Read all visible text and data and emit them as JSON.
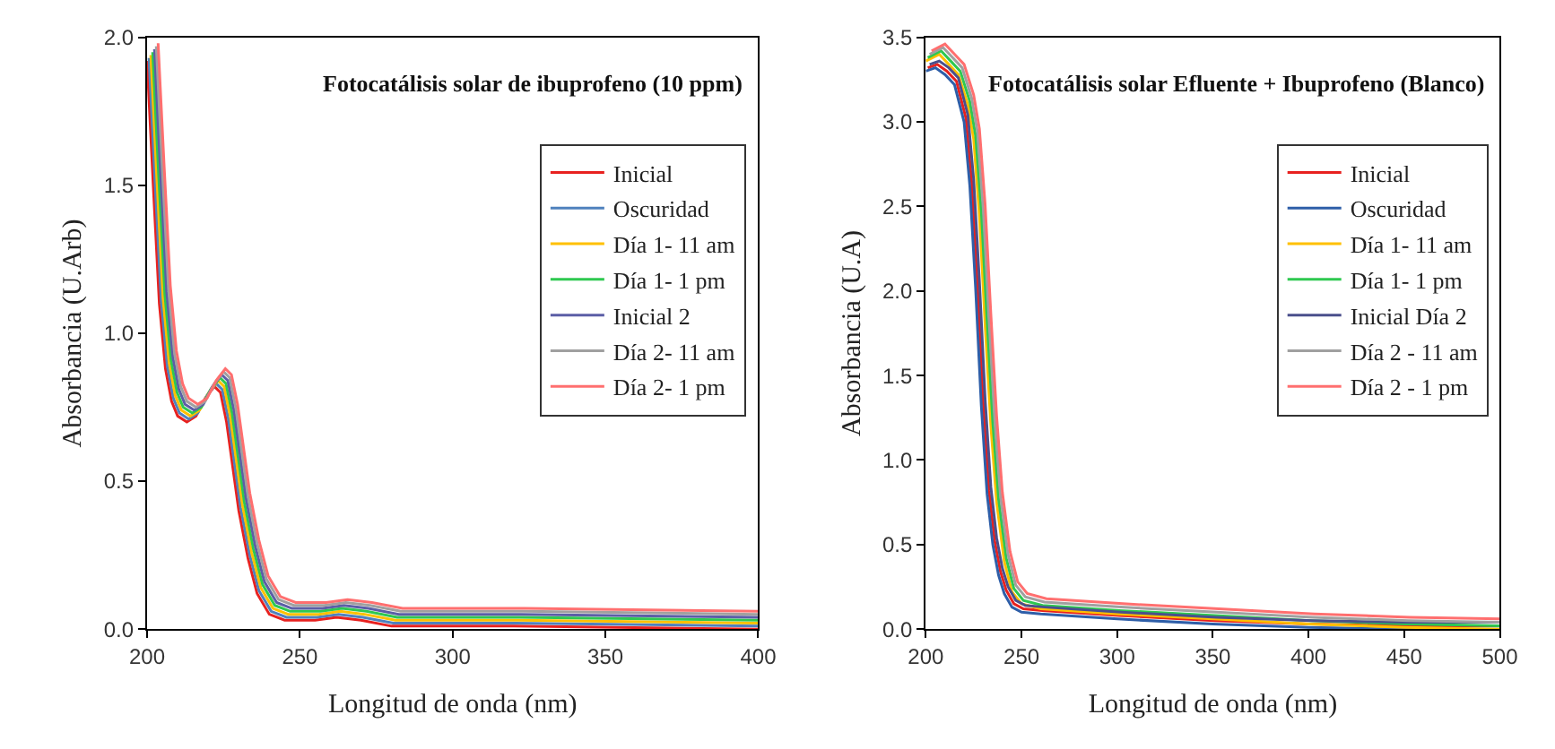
{
  "chart_data": [
    {
      "type": "line",
      "title": "Fotocatálisis solar de ibuprofeno (10 ppm)",
      "xlabel": "Longitud de onda (nm)",
      "ylabel": "Absorbancia (U.Arb)",
      "xlim": [
        200,
        400
      ],
      "xticks": [
        200,
        250,
        300,
        350,
        400
      ],
      "ylim": [
        0,
        2.0
      ],
      "yticks": [
        {
          "value": 0,
          "label": "0.0"
        },
        {
          "value": 0.5,
          "label": "0.5"
        },
        {
          "value": 1,
          "label": "1.0"
        },
        {
          "value": 1.5,
          "label": "1.5"
        },
        {
          "value": 2,
          "label": "2.0"
        }
      ],
      "grid": false,
      "legend": "top right",
      "marker": "none",
      "line_style": "solid",
      "series": [
        {
          "name": "Inicial",
          "color": "#e8211f",
          "x": [
            200,
            202,
            204,
            206,
            208,
            210,
            213,
            216,
            219,
            222,
            224,
            226,
            228,
            230,
            233,
            236,
            240,
            245,
            255,
            262,
            270,
            280,
            320,
            400
          ],
          "values": [
            1.92,
            1.5,
            1.1,
            0.88,
            0.77,
            0.72,
            0.7,
            0.72,
            0.78,
            0.82,
            0.8,
            0.7,
            0.55,
            0.4,
            0.24,
            0.12,
            0.05,
            0.03,
            0.03,
            0.04,
            0.03,
            0.01,
            0.01,
            0.0
          ]
        },
        {
          "name": "Oscuridad",
          "color": "#4f81bd",
          "x": [
            200.6,
            202.6,
            204.6,
            206.6,
            208.6,
            210.6,
            213.6,
            216.6,
            219.6,
            222.6,
            224.6,
            226.6,
            228.6,
            230.6,
            233.6,
            236.6,
            240.6,
            245.6,
            255.6,
            262.6,
            270.6,
            280.6,
            320.6,
            400
          ],
          "values": [
            1.93,
            1.51,
            1.11,
            0.89,
            0.78,
            0.73,
            0.71,
            0.73,
            0.79,
            0.83,
            0.81,
            0.71,
            0.56,
            0.41,
            0.25,
            0.13,
            0.06,
            0.04,
            0.04,
            0.05,
            0.04,
            0.02,
            0.02,
            0.01
          ]
        },
        {
          "name": "Día 1- 11 am",
          "color": "#ffc000",
          "x": [
            201.2,
            203.2,
            205.2,
            207.2,
            209.2,
            211.2,
            214.2,
            217.2,
            220.2,
            223.2,
            225.2,
            227.2,
            229.2,
            231.2,
            234.2,
            237.2,
            241.2,
            246.2,
            256.2,
            263.2,
            271.2,
            281.2,
            321.2,
            400
          ],
          "values": [
            1.94,
            1.52,
            1.12,
            0.9,
            0.79,
            0.74,
            0.72,
            0.74,
            0.8,
            0.84,
            0.82,
            0.72,
            0.57,
            0.42,
            0.26,
            0.14,
            0.07,
            0.05,
            0.05,
            0.06,
            0.05,
            0.03,
            0.03,
            0.02
          ]
        },
        {
          "name": "Día 1- 1 pm",
          "color": "#2ec850",
          "x": [
            201.8,
            203.8,
            205.8,
            207.8,
            209.8,
            211.8,
            214.8,
            217.8,
            220.8,
            223.8,
            225.8,
            227.8,
            229.8,
            231.8,
            234.8,
            237.8,
            241.8,
            246.8,
            256.8,
            263.8,
            271.8,
            281.8,
            321.8,
            400
          ],
          "values": [
            1.95,
            1.53,
            1.13,
            0.91,
            0.8,
            0.75,
            0.73,
            0.75,
            0.81,
            0.85,
            0.83,
            0.73,
            0.58,
            0.43,
            0.27,
            0.15,
            0.08,
            0.06,
            0.06,
            0.07,
            0.06,
            0.04,
            0.04,
            0.03
          ]
        },
        {
          "name": "Inicial 2",
          "color": "#5b5ea6",
          "x": [
            202.4,
            204.4,
            206.4,
            208.4,
            210.4,
            212.4,
            215.4,
            218.4,
            221.4,
            224.4,
            226.4,
            228.4,
            230.4,
            232.4,
            235.4,
            238.4,
            242.4,
            247.4,
            257.4,
            264.4,
            272.4,
            282.4,
            322.4,
            400
          ],
          "values": [
            1.96,
            1.54,
            1.14,
            0.92,
            0.81,
            0.76,
            0.74,
            0.76,
            0.82,
            0.86,
            0.84,
            0.74,
            0.59,
            0.44,
            0.28,
            0.16,
            0.09,
            0.07,
            0.07,
            0.08,
            0.07,
            0.05,
            0.05,
            0.04
          ]
        },
        {
          "name": "Día 2- 11 am",
          "color": "#a0a0a0",
          "x": [
            203,
            205,
            207,
            209,
            211,
            213,
            216,
            219,
            222,
            225,
            227,
            229,
            231,
            233,
            236,
            239,
            243,
            248,
            258,
            265,
            273,
            283,
            323,
            400
          ],
          "values": [
            1.97,
            1.55,
            1.15,
            0.93,
            0.82,
            0.77,
            0.75,
            0.77,
            0.83,
            0.87,
            0.85,
            0.75,
            0.6,
            0.45,
            0.29,
            0.17,
            0.1,
            0.08,
            0.08,
            0.09,
            0.08,
            0.06,
            0.06,
            0.05
          ]
        },
        {
          "name": "Día 2- 1 pm",
          "color": "#ff6f6f",
          "x": [
            203.6,
            205.6,
            207.6,
            209.6,
            211.6,
            213.6,
            216.6,
            219.6,
            222.6,
            225.6,
            227.6,
            229.6,
            231.6,
            233.6,
            236.6,
            239.6,
            243.6,
            248.6,
            258.6,
            265.6,
            273.6,
            283.6,
            323.6,
            400
          ],
          "values": [
            1.98,
            1.56,
            1.16,
            0.94,
            0.83,
            0.78,
            0.76,
            0.78,
            0.84,
            0.88,
            0.86,
            0.76,
            0.61,
            0.46,
            0.3,
            0.18,
            0.11,
            0.09,
            0.09,
            0.1,
            0.09,
            0.07,
            0.07,
            0.06
          ]
        }
      ]
    },
    {
      "type": "line",
      "title": "Fotocatálisis solar Efluente + Ibuprofeno (Blanco)",
      "xlabel": "Longitud de onda (nm)",
      "ylabel": "Absorbancia (U.A)",
      "xlim": [
        200,
        500
      ],
      "xticks": [
        200,
        250,
        300,
        350,
        400,
        450,
        500
      ],
      "ylim": [
        0,
        3.5
      ],
      "yticks": [
        {
          "value": 0,
          "label": "0.0"
        },
        {
          "value": 0.5,
          "label": "0.5"
        },
        {
          "value": 1,
          "label": "1.0"
        },
        {
          "value": 1.5,
          "label": "1.5"
        },
        {
          "value": 2,
          "label": "2.0"
        },
        {
          "value": 2.5,
          "label": "2.5"
        },
        {
          "value": 3,
          "label": "3.0"
        },
        {
          "value": 3.5,
          "label": "3.5"
        }
      ],
      "grid": false,
      "legend": "top right",
      "marker": "none",
      "line_style": "solid",
      "series": [
        {
          "name": "Inicial",
          "color": "#e8211f",
          "x": [
            201,
            206,
            211,
            216,
            221,
            224,
            227,
            230,
            233,
            236,
            239,
            242,
            246,
            251,
            261,
            301,
            351,
            401,
            451,
            500
          ],
          "values": [
            3.32,
            3.34,
            3.3,
            3.24,
            3.02,
            2.64,
            2.04,
            1.34,
            0.82,
            0.52,
            0.34,
            0.23,
            0.15,
            0.12,
            0.11,
            0.08,
            0.05,
            0.03,
            0.02,
            0.02
          ]
        },
        {
          "name": "Oscuridad",
          "color": "#2e5ea8",
          "x": [
            200,
            205,
            210,
            215,
            220,
            223,
            226,
            229,
            232,
            235,
            238,
            241,
            245,
            250,
            260,
            300,
            350,
            400,
            450,
            500
          ],
          "values": [
            3.3,
            3.32,
            3.28,
            3.22,
            3.0,
            2.62,
            2.02,
            1.32,
            0.8,
            0.5,
            0.32,
            0.21,
            0.13,
            0.1,
            0.09,
            0.06,
            0.03,
            0.01,
            0.0,
            0.0
          ]
        },
        {
          "name": "Día 1- 11 am",
          "color": "#ffc000",
          "x": [
            200,
            207,
            212,
            217,
            222,
            225,
            228,
            231,
            234,
            237,
            241,
            245,
            250,
            260,
            300,
            350,
            400,
            450,
            500
          ],
          "values": [
            3.36,
            3.4,
            3.34,
            3.28,
            3.1,
            2.9,
            2.45,
            1.8,
            1.2,
            0.75,
            0.4,
            0.22,
            0.15,
            0.12,
            0.09,
            0.06,
            0.03,
            0.01,
            0.0
          ]
        },
        {
          "name": "Día 1- 1 pm",
          "color": "#2ec850",
          "x": [
            201,
            208,
            213,
            218,
            223,
            226,
            229,
            232,
            235,
            238,
            242,
            246,
            251,
            261,
            301,
            351,
            401,
            451,
            500
          ],
          "values": [
            3.38,
            3.42,
            3.36,
            3.3,
            3.12,
            2.92,
            2.47,
            1.82,
            1.22,
            0.77,
            0.42,
            0.24,
            0.17,
            0.14,
            0.11,
            0.08,
            0.05,
            0.03,
            0.02
          ]
        },
        {
          "name": "Inicial Día 2",
          "color": "#4a4f8c",
          "x": [
            202,
            207,
            212,
            217,
            222,
            225,
            228,
            231,
            234,
            237,
            240,
            243,
            247,
            252,
            262,
            302,
            352,
            402,
            452,
            500
          ],
          "values": [
            3.34,
            3.36,
            3.32,
            3.26,
            3.04,
            2.66,
            2.06,
            1.36,
            0.84,
            0.54,
            0.36,
            0.25,
            0.17,
            0.14,
            0.13,
            0.1,
            0.07,
            0.05,
            0.04,
            0.04
          ]
        },
        {
          "name": "Día 2 - 11 am",
          "color": "#a0a0a0",
          "x": [
            202,
            209,
            214,
            219,
            224,
            227,
            230,
            233,
            236,
            239,
            243,
            247,
            252,
            262,
            302,
            352,
            402,
            452,
            500
          ],
          "values": [
            3.4,
            3.44,
            3.38,
            3.32,
            3.14,
            2.94,
            2.49,
            1.84,
            1.24,
            0.79,
            0.44,
            0.26,
            0.19,
            0.16,
            0.13,
            0.1,
            0.07,
            0.05,
            0.04
          ]
        },
        {
          "name": "Día 2 - 1 pm",
          "color": "#ff6f6f",
          "x": [
            203,
            210,
            215,
            220,
            225,
            228,
            231,
            234,
            237,
            240,
            244,
            248,
            253,
            263,
            303,
            353,
            403,
            453,
            500
          ],
          "values": [
            3.42,
            3.46,
            3.4,
            3.34,
            3.16,
            2.96,
            2.51,
            1.86,
            1.26,
            0.81,
            0.46,
            0.28,
            0.21,
            0.18,
            0.15,
            0.12,
            0.09,
            0.07,
            0.06
          ]
        }
      ]
    }
  ]
}
